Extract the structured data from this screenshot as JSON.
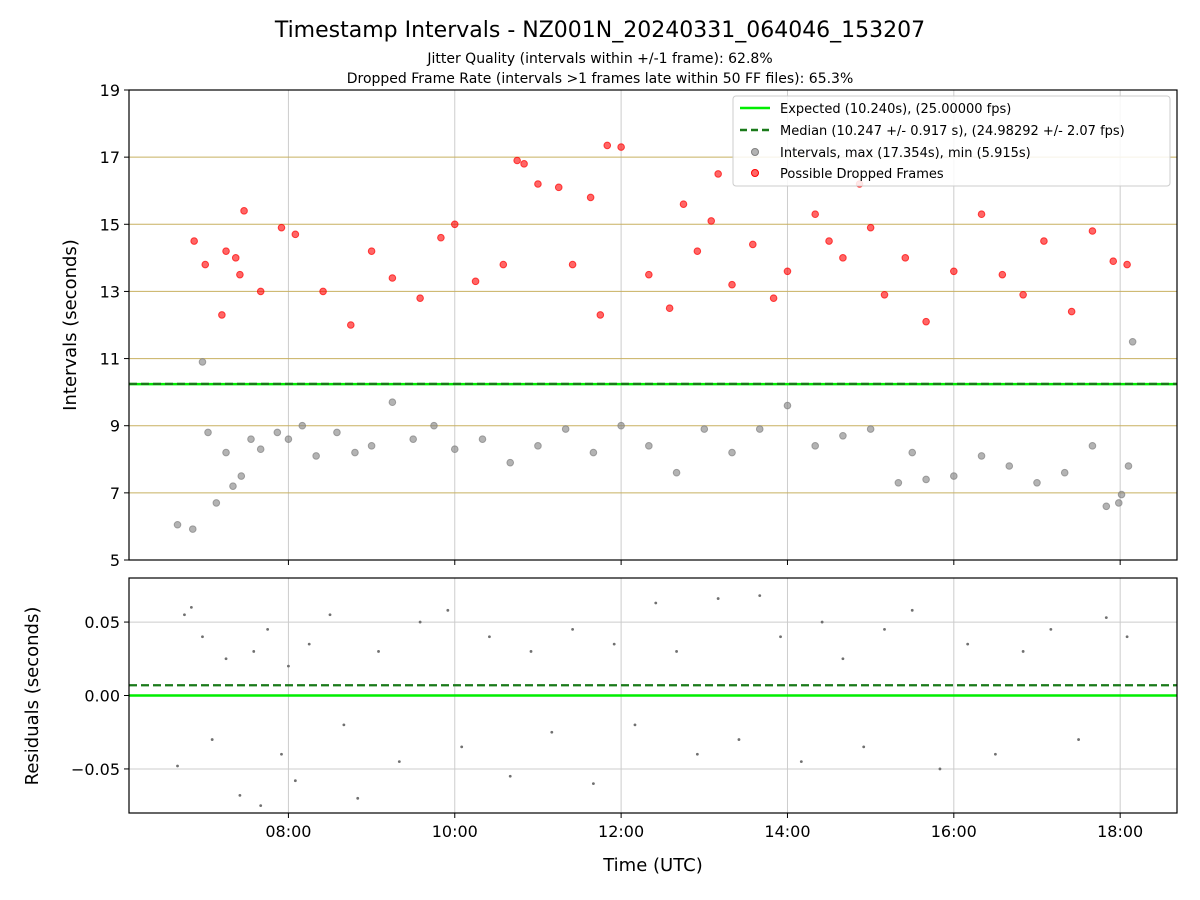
{
  "title": "Timestamp Intervals - NZ001N_20240331_064046_153207",
  "subtitle1": "Jitter Quality (intervals within +/-1 frame): 62.8%",
  "subtitle2": "Dropped Frame Rate (intervals >1 frames late within 50 FF files): 65.3%",
  "colors": {
    "expected": "#00ee00",
    "median": "#1a7a1a",
    "intervals": "#808080",
    "dropped": "#ff0000",
    "hgrid": "#c8b060",
    "vgrid": "#cccccc"
  },
  "chart_data": [
    {
      "type": "scatter",
      "ylabel": "Intervals (seconds)",
      "xlim": [
        "06:05",
        "18:41"
      ],
      "ylim": [
        5,
        19
      ],
      "yticks": [
        "5",
        "7",
        "9",
        "11",
        "13",
        "15",
        "17",
        "19"
      ],
      "xticks": [
        "08:00",
        "10:00",
        "12:00",
        "14:00",
        "16:00",
        "18:00"
      ],
      "hlines": [
        7,
        9,
        11,
        13,
        15,
        17
      ],
      "grid": true,
      "legend_position": "top-right",
      "expected_value": 10.24,
      "median_value": 10.247,
      "legend": [
        {
          "label": "Expected (10.240s), (25.00000 fps)",
          "kind": "solid",
          "color": "#00ee00"
        },
        {
          "label": "Median (10.247 +/- 0.917 s), (24.98292 +/- 2.07 fps)",
          "kind": "dashed",
          "color": "#1a7a1a"
        },
        {
          "label": "Intervals, max (17.354s), min (5.915s)",
          "kind": "marker",
          "color": "#808080"
        },
        {
          "label": "Possible Dropped Frames",
          "kind": "marker",
          "color": "#ff0000"
        }
      ],
      "series": [
        {
          "name": "Intervals, max (17.354s), min (5.915s)",
          "color": "#808080",
          "x": [
            "06:40",
            "06:51",
            "06:58",
            "07:02",
            "07:08",
            "07:15",
            "07:20",
            "07:26",
            "07:33",
            "07:40",
            "07:52",
            "08:00",
            "08:10",
            "08:20",
            "08:35",
            "08:48",
            "09:00",
            "09:15",
            "09:30",
            "09:45",
            "10:00",
            "10:20",
            "10:40",
            "11:00",
            "11:20",
            "11:40",
            "12:00",
            "12:20",
            "12:40",
            "13:00",
            "13:20",
            "13:40",
            "14:00",
            "14:20",
            "14:40",
            "15:00",
            "15:20",
            "15:30",
            "15:40",
            "16:00",
            "16:20",
            "16:40",
            "17:00",
            "17:20",
            "17:40",
            "17:50",
            "17:59",
            "18:01",
            "18:06",
            "18:09"
          ],
          "y": [
            6.05,
            5.92,
            10.9,
            8.8,
            6.7,
            8.2,
            7.2,
            7.5,
            8.6,
            8.3,
            8.8,
            8.6,
            9.0,
            8.1,
            8.8,
            8.2,
            8.4,
            9.7,
            8.6,
            9.0,
            8.3,
            8.6,
            7.9,
            8.4,
            8.9,
            8.2,
            9.0,
            8.4,
            7.6,
            8.9,
            8.2,
            8.9,
            9.6,
            8.4,
            8.7,
            8.9,
            7.3,
            8.2,
            7.4,
            7.5,
            8.1,
            7.8,
            7.3,
            7.6,
            8.4,
            6.6,
            6.7,
            6.95,
            7.8,
            11.5
          ]
        },
        {
          "name": "Possible Dropped Frames",
          "color": "#ff0000",
          "x": [
            "06:52",
            "07:00",
            "07:12",
            "07:15",
            "07:22",
            "07:25",
            "07:28",
            "07:40",
            "07:55",
            "08:05",
            "08:25",
            "08:45",
            "09:00",
            "09:15",
            "09:35",
            "09:50",
            "10:00",
            "10:15",
            "10:35",
            "10:45",
            "10:50",
            "11:00",
            "11:15",
            "11:25",
            "11:38",
            "11:45",
            "11:50",
            "12:00",
            "12:20",
            "12:35",
            "12:45",
            "12:55",
            "13:05",
            "13:10",
            "13:20",
            "13:35",
            "13:50",
            "14:00",
            "14:20",
            "14:30",
            "14:40",
            "14:52",
            "15:00",
            "15:10",
            "15:25",
            "15:40",
            "16:00",
            "16:20",
            "16:35",
            "16:50",
            "17:05",
            "17:25",
            "17:40",
            "17:55",
            "18:05"
          ],
          "y": [
            14.5,
            13.8,
            12.3,
            14.2,
            14.0,
            13.5,
            15.4,
            13.0,
            14.9,
            14.7,
            13.0,
            12.0,
            14.2,
            13.4,
            12.8,
            14.6,
            15.0,
            13.3,
            13.8,
            16.9,
            16.8,
            16.2,
            16.1,
            13.8,
            15.8,
            12.3,
            17.35,
            17.3,
            13.5,
            12.5,
            15.6,
            14.2,
            15.1,
            16.5,
            13.2,
            14.4,
            12.8,
            13.6,
            15.3,
            14.5,
            14.0,
            16.2,
            14.9,
            12.9,
            14.0,
            12.1,
            13.6,
            15.3,
            13.5,
            12.9,
            14.5,
            12.4,
            14.8,
            13.9,
            13.8
          ]
        }
      ]
    },
    {
      "type": "scatter",
      "xlabel": "Time (UTC)",
      "ylabel": "Residuals (seconds)",
      "xlim": [
        "06:05",
        "18:41"
      ],
      "ylim": [
        -0.08,
        0.08
      ],
      "yticks": [
        "−0.05",
        "0.00",
        "0.05"
      ],
      "xticks": [
        "08:00",
        "10:00",
        "12:00",
        "14:00",
        "16:00",
        "18:00"
      ],
      "grid": true,
      "expected_value": 0.0,
      "median_value": 0.007,
      "series": [
        {
          "name": "Residuals",
          "color": "#707070",
          "x": [
            "06:40",
            "06:45",
            "06:50",
            "06:58",
            "07:05",
            "07:15",
            "07:25",
            "07:35",
            "07:40",
            "07:45",
            "07:55",
            "08:00",
            "08:05",
            "08:15",
            "08:30",
            "08:40",
            "08:50",
            "09:05",
            "09:20",
            "09:35",
            "09:55",
            "10:05",
            "10:25",
            "10:40",
            "10:55",
            "11:10",
            "11:25",
            "11:40",
            "11:55",
            "12:10",
            "12:25",
            "12:40",
            "12:55",
            "13:10",
            "13:25",
            "13:40",
            "13:55",
            "14:10",
            "14:25",
            "14:40",
            "14:55",
            "15:10",
            "15:30",
            "15:50",
            "16:10",
            "16:30",
            "16:50",
            "17:10",
            "17:30",
            "17:50",
            "18:05"
          ],
          "y": [
            -0.048,
            0.055,
            0.06,
            0.04,
            -0.03,
            0.025,
            -0.068,
            0.03,
            -0.075,
            0.045,
            -0.04,
            0.02,
            -0.058,
            0.035,
            0.055,
            -0.02,
            -0.07,
            0.03,
            -0.045,
            0.05,
            0.058,
            -0.035,
            0.04,
            -0.055,
            0.03,
            -0.025,
            0.045,
            -0.06,
            0.035,
            -0.02,
            0.063,
            0.03,
            -0.04,
            0.066,
            -0.03,
            0.068,
            0.04,
            -0.045,
            0.05,
            0.025,
            -0.035,
            0.045,
            0.058,
            -0.05,
            0.035,
            -0.04,
            0.03,
            0.045,
            -0.03,
            0.053,
            0.04
          ]
        }
      ]
    }
  ]
}
